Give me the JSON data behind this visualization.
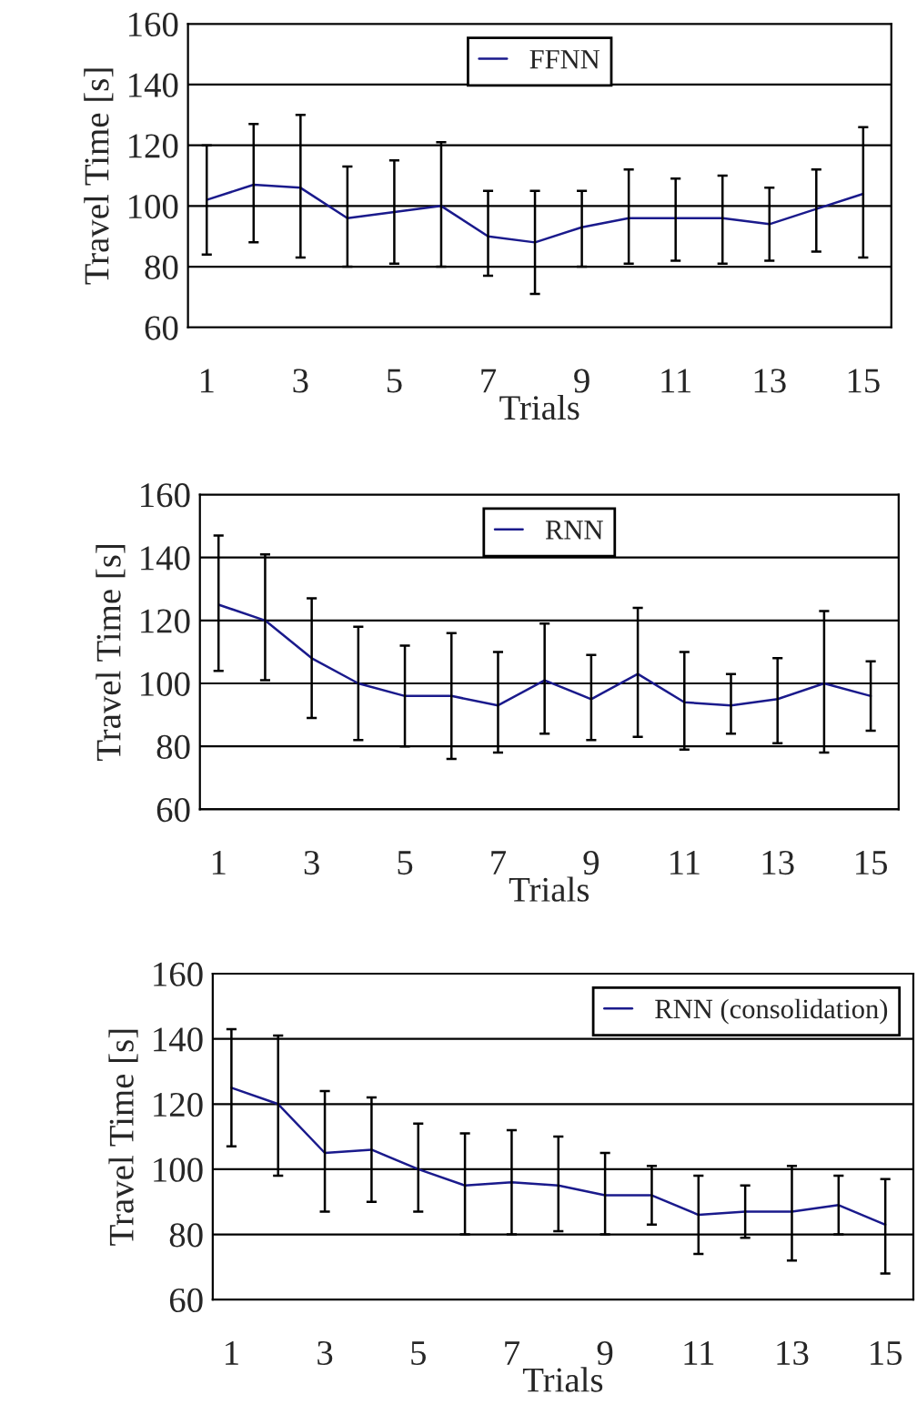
{
  "chart_data": [
    {
      "type": "line",
      "xlabel": "Trials",
      "ylabel": "Travel Time [s]",
      "categories": [
        "1",
        null,
        "3",
        null,
        "5",
        null,
        "7",
        null,
        "9",
        null,
        "11",
        null,
        "13",
        null,
        "15"
      ],
      "ylim": [
        60,
        160
      ],
      "yticks": [
        60,
        80,
        100,
        120,
        140,
        160
      ],
      "grid": "y",
      "legend": "top",
      "marker": "none",
      "series": [
        {
          "name": "FFNN",
          "color": "#1a1a8c",
          "values": [
            102,
            107,
            106,
            96,
            98,
            100,
            90,
            88,
            93,
            96,
            96,
            96,
            94,
            99,
            104
          ],
          "errors": [
            [
              84,
              120
            ],
            [
              88,
              127
            ],
            [
              83,
              130
            ],
            [
              80,
              113
            ],
            [
              81,
              115
            ],
            [
              80,
              121
            ],
            [
              77,
              105
            ],
            [
              71,
              105
            ],
            [
              80,
              105
            ],
            [
              81,
              112
            ],
            [
              82,
              109
            ],
            [
              81,
              110
            ],
            [
              82,
              106
            ],
            [
              85,
              112
            ],
            [
              83,
              126
            ]
          ]
        }
      ]
    },
    {
      "type": "line",
      "xlabel": "Trials",
      "ylabel": "Travel Time [s]",
      "categories": [
        "1",
        null,
        "3",
        null,
        "5",
        null,
        "7",
        null,
        "9",
        null,
        "11",
        null,
        "13",
        null,
        "15"
      ],
      "ylim": [
        60,
        160
      ],
      "yticks": [
        60,
        80,
        100,
        120,
        140,
        160
      ],
      "grid": "y",
      "legend": "top",
      "marker": "none",
      "series": [
        {
          "name": "RNN",
          "color": "#1a1a8c",
          "values": [
            125,
            120,
            108,
            100,
            96,
            96,
            93,
            101,
            95,
            103,
            94,
            93,
            95,
            100,
            96
          ],
          "errors": [
            [
              104,
              147
            ],
            [
              101,
              141
            ],
            [
              89,
              127
            ],
            [
              82,
              118
            ],
            [
              80,
              112
            ],
            [
              76,
              116
            ],
            [
              78,
              110
            ],
            [
              84,
              119
            ],
            [
              82,
              109
            ],
            [
              83,
              124
            ],
            [
              79,
              110
            ],
            [
              84,
              103
            ],
            [
              81,
              108
            ],
            [
              78,
              123
            ],
            [
              85,
              107
            ]
          ]
        }
      ]
    },
    {
      "type": "line",
      "xlabel": "Trials",
      "ylabel": "Travel Time [s]",
      "categories": [
        "1",
        null,
        "3",
        null,
        "5",
        null,
        "7",
        null,
        "9",
        null,
        "11",
        null,
        "13",
        null,
        "15"
      ],
      "ylim": [
        60,
        160
      ],
      "yticks": [
        60,
        80,
        100,
        120,
        140,
        160
      ],
      "grid": "y",
      "legend": "top right",
      "marker": "none",
      "series": [
        {
          "name": "RNN (consolidation)",
          "color": "#1a1a8c",
          "values": [
            125,
            120,
            105,
            106,
            100,
            95,
            96,
            95,
            92,
            92,
            86,
            87,
            87,
            89,
            83
          ],
          "errors": [
            [
              107,
              143
            ],
            [
              98,
              141
            ],
            [
              87,
              124
            ],
            [
              90,
              122
            ],
            [
              87,
              114
            ],
            [
              80,
              111
            ],
            [
              80,
              112
            ],
            [
              81,
              110
            ],
            [
              80,
              105
            ],
            [
              83,
              101
            ],
            [
              74,
              98
            ],
            [
              79,
              95
            ],
            [
              72,
              101
            ],
            [
              80,
              98
            ],
            [
              68,
              97
            ]
          ]
        }
      ]
    }
  ]
}
